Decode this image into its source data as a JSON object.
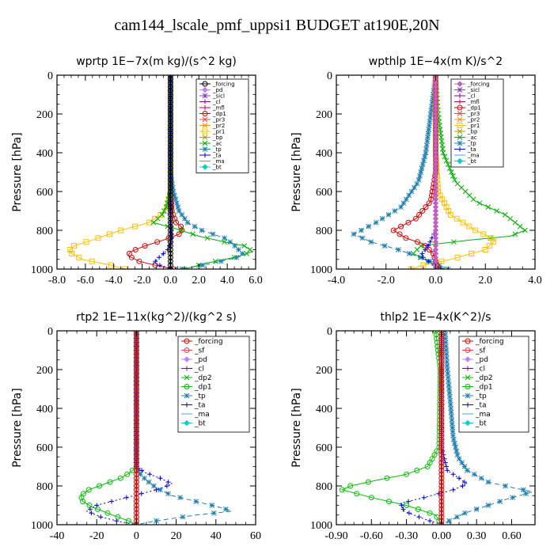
{
  "figure_title": "cam144_lscale_pmf_uppsi1  BUDGET at190E,20N",
  "chart_data": [
    {
      "type": "line",
      "title": "wprtp   1E−7x(m kg)/(s^2 kg)",
      "ylabel": "Pressure [hPa]",
      "xlim": [
        -8,
        6
      ],
      "ylim": [
        0,
        1000
      ],
      "xticks": [
        -8,
        -6,
        -4,
        -2,
        0,
        2,
        4,
        6
      ],
      "xtick_labels": [
        "-8.0",
        "-6.0",
        "-4.0",
        "-2.0",
        "0.0",
        "2.0",
        "4.0",
        "6.0"
      ],
      "yticks": [
        0,
        200,
        400,
        600,
        800,
        1000
      ],
      "ytick_labels": [
        "0",
        "200",
        "400",
        "600",
        "800",
        "1000"
      ],
      "legend": [
        "_forcing",
        "_pd",
        "_sicl",
        "_cl",
        "_mfl",
        "_dp1",
        "_pr3",
        "_pr2",
        "_pr1",
        "_bp",
        "_ac",
        "_tp",
        "_ta",
        "_ma",
        "_bt"
      ],
      "series": [
        {
          "name": "_pr1",
          "color": "#ffbf00",
          "marker": "square",
          "dash": "none",
          "x": [
            0,
            0,
            0,
            0,
            -0.3,
            -1.5,
            -3.5,
            -5.5,
            -6.8,
            -7.2,
            -6.2,
            -4.2,
            -3.2
          ],
          "y": [
            0,
            200,
            400,
            600,
            700,
            760,
            800,
            850,
            880,
            910,
            950,
            980,
            1000
          ]
        },
        {
          "name": "_dp1",
          "color": "#e00000",
          "marker": "circle",
          "dash": "none",
          "x": [
            0,
            0,
            0,
            0.1,
            0.4,
            0.9,
            0.6,
            -0.5,
            -1.8,
            -2.8,
            -3.0,
            -2.2,
            -0.8,
            0.2
          ],
          "y": [
            0,
            400,
            600,
            700,
            760,
            790,
            820,
            850,
            880,
            910,
            930,
            960,
            985,
            1000
          ]
        },
        {
          "name": "_ac",
          "color": "#00b000",
          "marker": "x",
          "dash": "none",
          "x": [
            0,
            0,
            -0.3,
            -0.6,
            -1.2,
            0.3,
            2.0,
            3.8,
            5.2,
            5.8,
            4.5,
            2.5,
            1.0
          ],
          "y": [
            0,
            600,
            680,
            720,
            760,
            790,
            830,
            860,
            880,
            910,
            940,
            970,
            1000
          ]
        },
        {
          "name": "_tp",
          "color": "#2080b0",
          "marker": "star",
          "dash": "6,4",
          "x": [
            0,
            0,
            0.2,
            0.6,
            1.2,
            2.2,
            3.8,
            4.4,
            4.8,
            5.2,
            3.0,
            0.8
          ],
          "y": [
            0,
            500,
            600,
            700,
            760,
            800,
            840,
            870,
            900,
            930,
            970,
            1000
          ]
        },
        {
          "name": "_ta",
          "color": "#0000e0",
          "marker": "plus",
          "dash": "2,3",
          "x": [
            0,
            0,
            0.1,
            -0.2,
            -0.8,
            -1.2,
            -0.3,
            0.4
          ],
          "y": [
            0,
            700,
            850,
            900,
            940,
            970,
            990,
            1000
          ]
        },
        {
          "name": "_forcing",
          "color": "#000000",
          "marker": "circle-open",
          "dash": "none",
          "x": [
            0,
            0
          ],
          "y": [
            0,
            1000
          ]
        }
      ]
    },
    {
      "type": "line",
      "title": "wpthlp   1E−4x(m K)/s^2",
      "ylabel": "Pressure [hPa]",
      "xlim": [
        -4,
        4
      ],
      "ylim": [
        0,
        1000
      ],
      "xticks": [
        -4,
        -2,
        0,
        2,
        4
      ],
      "xtick_labels": [
        "-4.0",
        "-2.0",
        "0.0",
        "2.0",
        "4.0"
      ],
      "yticks": [
        0,
        200,
        400,
        600,
        800,
        1000
      ],
      "ytick_labels": [
        "0",
        "200",
        "400",
        "600",
        "800",
        "1000"
      ],
      "legend": [
        "_forcing",
        "_sicl",
        "_cl",
        "_mfl",
        "_dp1",
        "_pr3",
        "_pr2",
        "_pr1",
        "_bp",
        "_ac",
        "_tp",
        "_ta",
        "_ma",
        "_bt"
      ],
      "series": [
        {
          "name": "_ac",
          "color": "#00b000",
          "marker": "x",
          "dash": "none",
          "x": [
            0,
            0.1,
            0.3,
            0.8,
            1.6,
            2.8,
            3.6,
            3.0,
            1.4,
            -0.6,
            -0.9,
            -0.3,
            0.3
          ],
          "y": [
            0,
            200,
            400,
            550,
            650,
            720,
            800,
            830,
            850,
            880,
            920,
            960,
            1000
          ]
        },
        {
          "name": "_tp",
          "color": "#2080b0",
          "marker": "star",
          "dash": "6,4",
          "x": [
            0,
            -0.2,
            -0.4,
            -0.7,
            -1.4,
            -2.4,
            -3.3,
            -2.6,
            -1.5,
            -0.4,
            0.5
          ],
          "y": [
            0,
            200,
            400,
            550,
            680,
            760,
            820,
            860,
            900,
            950,
            1000
          ]
        },
        {
          "name": "_pr1",
          "color": "#ffbf00",
          "marker": "square",
          "dash": "none",
          "x": [
            0,
            0,
            0.1,
            0.6,
            1.6,
            2.4,
            2.0,
            0.6,
            -0.5,
            -1.0
          ],
          "y": [
            0,
            400,
            600,
            720,
            800,
            850,
            900,
            950,
            980,
            1000
          ]
        },
        {
          "name": "_dp1",
          "color": "#e00000",
          "marker": "circle",
          "dash": "none",
          "x": [
            0,
            0,
            -0.2,
            -0.8,
            -1.7,
            -1.2,
            -0.5,
            -0.1,
            0.1
          ],
          "y": [
            0,
            500,
            650,
            740,
            800,
            840,
            870,
            920,
            1000
          ]
        },
        {
          "name": "_ta",
          "color": "#0000e0",
          "marker": "plus",
          "dash": "2,3",
          "x": [
            0,
            0,
            -0.3,
            -0.6,
            -0.2,
            0.2
          ],
          "y": [
            0,
            800,
            880,
            930,
            970,
            1000
          ]
        },
        {
          "name": "_forcing",
          "color": "#c060c0",
          "marker": "diamond",
          "dash": "none",
          "x": [
            0,
            0
          ],
          "y": [
            0,
            1000
          ]
        }
      ]
    },
    {
      "type": "line",
      "title": "rtp2   1E−11x(kg^2)/(kg^2 s)",
      "ylabel": "Pressure [hPa]",
      "xlim": [
        -40,
        60
      ],
      "ylim": [
        0,
        1000
      ],
      "xticks": [
        -40,
        -20,
        0,
        20,
        40,
        60
      ],
      "xtick_labels": [
        "-40",
        "-20",
        "0",
        "20",
        "40",
        "60"
      ],
      "yticks": [
        0,
        200,
        400,
        600,
        800,
        1000
      ],
      "ytick_labels": [
        "0",
        "200",
        "400",
        "600",
        "800",
        "1000"
      ],
      "legend": [
        "_forcing",
        "_sf",
        "_pd",
        "_cl",
        "_dp2",
        "_dp1",
        "_tp",
        "_ta",
        "_ma",
        "_bt"
      ],
      "series": [
        {
          "name": "_dp1",
          "color": "#00c000",
          "marker": "circle-open",
          "dash": "none",
          "x": [
            0,
            0,
            -3,
            -8,
            -16,
            -24,
            -28,
            -27,
            -22,
            -12,
            -4,
            0
          ],
          "y": [
            0,
            700,
            730,
            760,
            790,
            820,
            850,
            880,
            910,
            950,
            980,
            1000
          ]
        },
        {
          "name": "_tp",
          "color": "#2080b0",
          "marker": "star",
          "dash": "6,4",
          "x": [
            0,
            0,
            2,
            5,
            10,
            18,
            30,
            42,
            48,
            30,
            10,
            0
          ],
          "y": [
            0,
            700,
            740,
            770,
            810,
            850,
            880,
            910,
            930,
            950,
            980,
            1000
          ]
        },
        {
          "name": "_ta",
          "color": "#0000e0",
          "marker": "plus",
          "dash": "2,3",
          "x": [
            0,
            0,
            4,
            12,
            18,
            10,
            -5,
            -20,
            -25,
            -18,
            -8,
            0
          ],
          "y": [
            0,
            700,
            730,
            760,
            790,
            820,
            860,
            900,
            930,
            960,
            985,
            1000
          ]
        },
        {
          "name": "_forcing",
          "color": "#e00000",
          "marker": "circle",
          "dash": "none",
          "x": [
            0,
            0
          ],
          "y": [
            0,
            1000
          ]
        }
      ]
    },
    {
      "type": "line",
      "title": "thlp2   1E−4x(K^2)/s",
      "ylabel": "Pressure [hPa]",
      "xlim": [
        -0.9,
        0.8
      ],
      "ylim": [
        0,
        1000
      ],
      "xticks": [
        -0.9,
        -0.6,
        -0.3,
        0.0,
        0.3,
        0.6
      ],
      "xtick_labels": [
        "-0.90",
        "-0.60",
        "-0.30",
        "0.00",
        "0.30",
        "0.60"
      ],
      "yticks": [
        0,
        200,
        400,
        600,
        800,
        1000
      ],
      "ytick_labels": [
        "0",
        "200",
        "400",
        "600",
        "800",
        "1000"
      ],
      "legend": [
        "_forcing",
        "_sf",
        "_pd",
        "_cl",
        "_dp2",
        "_dp1",
        "_tp",
        "_ta",
        "_ma",
        "_bt"
      ],
      "series": [
        {
          "name": "_dp1",
          "color": "#00c000",
          "marker": "circle-open",
          "dash": "none",
          "x": [
            -0.05,
            -0.03,
            -0.01,
            -0.02,
            -0.12,
            -0.3,
            -0.55,
            -0.78,
            -0.85,
            -0.6,
            -0.3,
            -0.05,
            0
          ],
          "y": [
            0,
            100,
            200,
            600,
            700,
            740,
            770,
            800,
            820,
            860,
            900,
            950,
            1000
          ]
        },
        {
          "name": "_tp",
          "color": "#2080b0",
          "marker": "star",
          "dash": "6,4",
          "x": [
            0.03,
            0.05,
            0.08,
            0.1,
            0.14,
            0.22,
            0.4,
            0.62,
            0.78,
            0.55,
            0.2,
            0
          ],
          "y": [
            0,
            200,
            400,
            550,
            650,
            720,
            780,
            810,
            830,
            870,
            940,
            1000
          ]
        },
        {
          "name": "_ta",
          "color": "#0000e0",
          "marker": "plus",
          "dash": "2,3",
          "x": [
            0,
            0,
            0.05,
            0.15,
            0.22,
            0.1,
            -0.15,
            -0.35,
            -0.32,
            -0.15,
            0
          ],
          "y": [
            0,
            600,
            720,
            760,
            790,
            820,
            860,
            890,
            930,
            970,
            1000
          ]
        },
        {
          "name": "_forcing",
          "color": "#e00000",
          "marker": "circle",
          "dash": "none",
          "x": [
            0,
            0
          ],
          "y": [
            0,
            1000
          ]
        }
      ]
    }
  ]
}
